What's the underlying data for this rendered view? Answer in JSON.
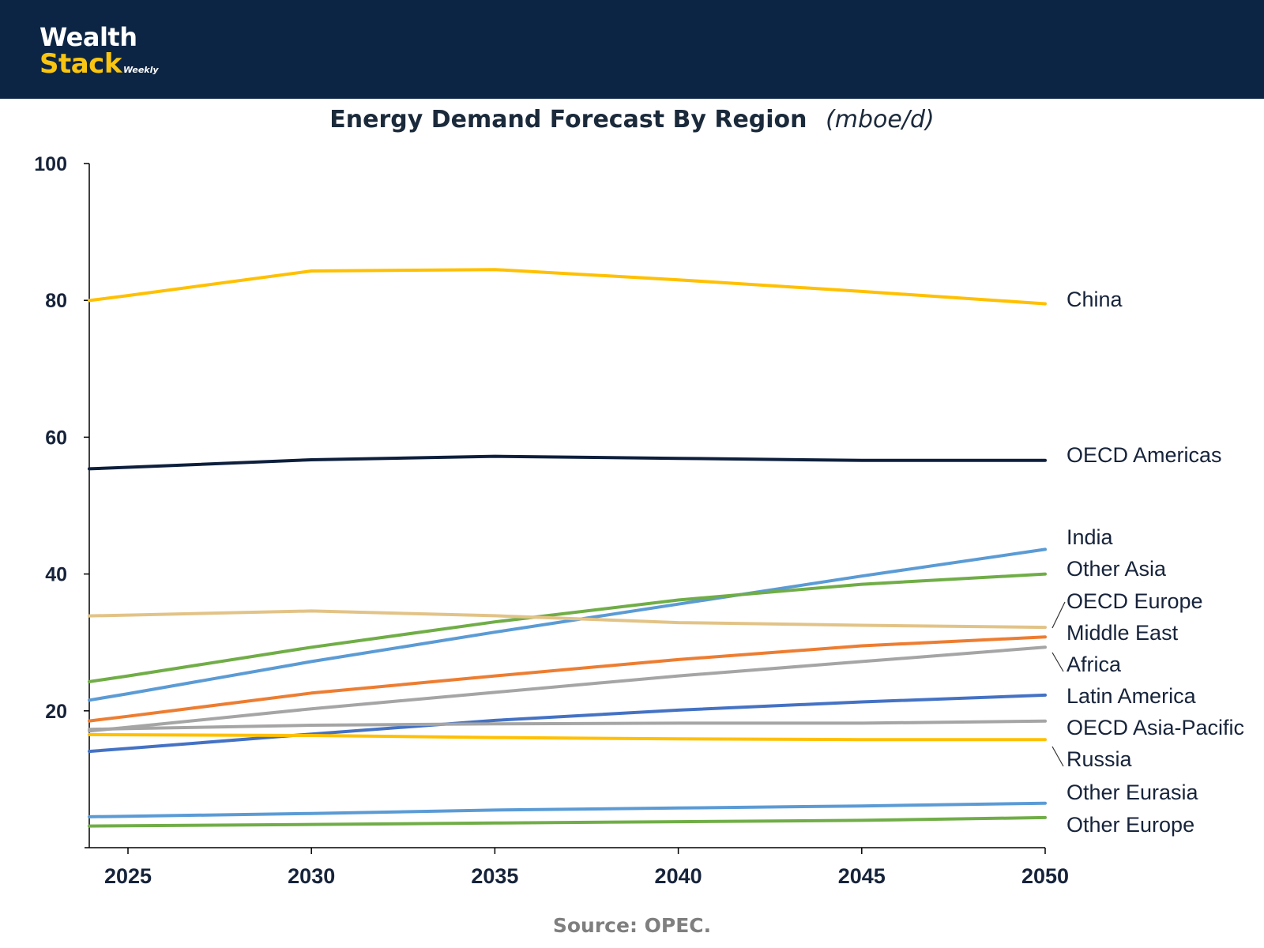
{
  "brand": {
    "line1": "Wealth",
    "line2": "Stack",
    "suffix": "Weekly"
  },
  "colors": {
    "header_bg": "#0d2545",
    "brand_accent": "#f9c511"
  },
  "chart_data": {
    "type": "line",
    "title": "Energy Demand Forecast By Region",
    "unit": "(mboe/d)",
    "xlabel": "",
    "ylabel": "",
    "x": [
      2025,
      2030,
      2035,
      2040,
      2045,
      2050
    ],
    "xlim": [
      2024,
      2050
    ],
    "ylim": [
      0,
      100
    ],
    "yticks": [
      20,
      40,
      60,
      80,
      100
    ],
    "xticks": [
      2025,
      2030,
      2035,
      2040,
      2045,
      2050
    ],
    "legend": "right-end labels",
    "series": [
      {
        "name": "China",
        "color": "#ffc000",
        "values": [
          80.7,
          84.3,
          84.5,
          83.0,
          81.3,
          79.5
        ]
      },
      {
        "name": "OECD Americas",
        "color": "#0d1f3c",
        "values": [
          55.6,
          56.7,
          57.2,
          56.9,
          56.6,
          56.6
        ]
      },
      {
        "name": "India",
        "color": "#5b9bd5",
        "values": [
          22.5,
          27.2,
          31.5,
          35.6,
          39.7,
          43.6
        ]
      },
      {
        "name": "Other Asia",
        "color": "#70ad47",
        "values": [
          25.1,
          29.3,
          33.0,
          36.2,
          38.5,
          40.0
        ]
      },
      {
        "name": "OECD Europe",
        "color": "#e2c387",
        "values": [
          34.0,
          34.6,
          33.9,
          32.9,
          32.5,
          32.2
        ]
      },
      {
        "name": "Middle East",
        "color": "#ed7d31",
        "values": [
          19.2,
          22.6,
          25.1,
          27.5,
          29.5,
          30.8
        ]
      },
      {
        "name": "Africa",
        "color": "#a5a5a5",
        "values": [
          17.6,
          20.3,
          22.7,
          25.1,
          27.2,
          29.3
        ]
      },
      {
        "name": "Latin America",
        "color": "#4472c4",
        "values": [
          14.5,
          16.6,
          18.6,
          20.1,
          21.3,
          22.3
        ]
      },
      {
        "name": "OECD Asia-Pacific",
        "color": "#a5a5a5",
        "values": [
          17.4,
          17.9,
          18.1,
          18.2,
          18.2,
          18.5
        ]
      },
      {
        "name": "Russia",
        "color": "#ffc000",
        "values": [
          16.5,
          16.4,
          16.1,
          15.9,
          15.8,
          15.8
        ]
      },
      {
        "name": "Other Eurasia",
        "color": "#5b9bd5",
        "values": [
          4.6,
          5.0,
          5.5,
          5.8,
          6.1,
          6.5
        ]
      },
      {
        "name": "Other Europe",
        "color": "#70ad47",
        "values": [
          3.2,
          3.4,
          3.6,
          3.8,
          4.0,
          4.4
        ]
      }
    ]
  },
  "footer": {
    "source": "Source: OPEC."
  }
}
